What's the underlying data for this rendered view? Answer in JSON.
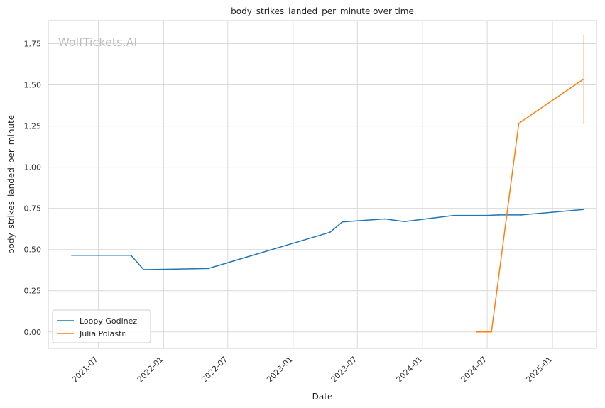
{
  "chart_data": {
    "type": "line",
    "title": "body_strikes_landed_per_minute over time",
    "xlabel": "Date",
    "ylabel": "body_strikes_landed_per_minute",
    "watermark": "WolfTickets.AI",
    "grid": true,
    "legend_position": "bottom-left",
    "x_axis_type": "date",
    "xlim": [
      "2021-02-10",
      "2025-05-05"
    ],
    "ylim": [
      -0.1,
      1.89
    ],
    "x_ticks": [
      "2021-07",
      "2022-01",
      "2022-07",
      "2023-01",
      "2023-07",
      "2024-01",
      "2024-07",
      "2025-01"
    ],
    "y_ticks": [
      "0.00",
      "0.25",
      "0.50",
      "0.75",
      "1.00",
      "1.25",
      "1.50",
      "1.75"
    ],
    "series": [
      {
        "name": "Loopy Godinez",
        "color": "#1f77b4",
        "points": [
          {
            "x": "2021-04-17",
            "y": 0.465
          },
          {
            "x": "2021-07-01",
            "y": 0.465
          },
          {
            "x": "2021-10-01",
            "y": 0.465
          },
          {
            "x": "2021-11-06",
            "y": 0.378
          },
          {
            "x": "2022-05-07",
            "y": 0.385
          },
          {
            "x": "2023-04-15",
            "y": 0.605
          },
          {
            "x": "2023-05-20",
            "y": 0.668
          },
          {
            "x": "2023-09-16",
            "y": 0.686
          },
          {
            "x": "2023-11-11",
            "y": 0.67
          },
          {
            "x": "2024-03-30",
            "y": 0.707
          },
          {
            "x": "2024-06-29",
            "y": 0.707
          },
          {
            "x": "2024-08-03",
            "y": 0.71
          },
          {
            "x": "2024-10-05",
            "y": 0.71
          },
          {
            "x": "2025-03-29",
            "y": 0.743
          }
        ]
      },
      {
        "name": "Julia Polastri",
        "color": "#ff7f0e",
        "points": [
          {
            "x": "2024-06-01",
            "y": 0.0
          },
          {
            "x": "2024-07-13",
            "y": 0.0
          },
          {
            "x": "2024-09-28",
            "y": 1.266
          },
          {
            "x": "2025-03-29",
            "y": 1.534
          }
        ],
        "error_band": {
          "x": "2025-03-29",
          "low": 1.26,
          "high": 1.8
        }
      }
    ]
  }
}
